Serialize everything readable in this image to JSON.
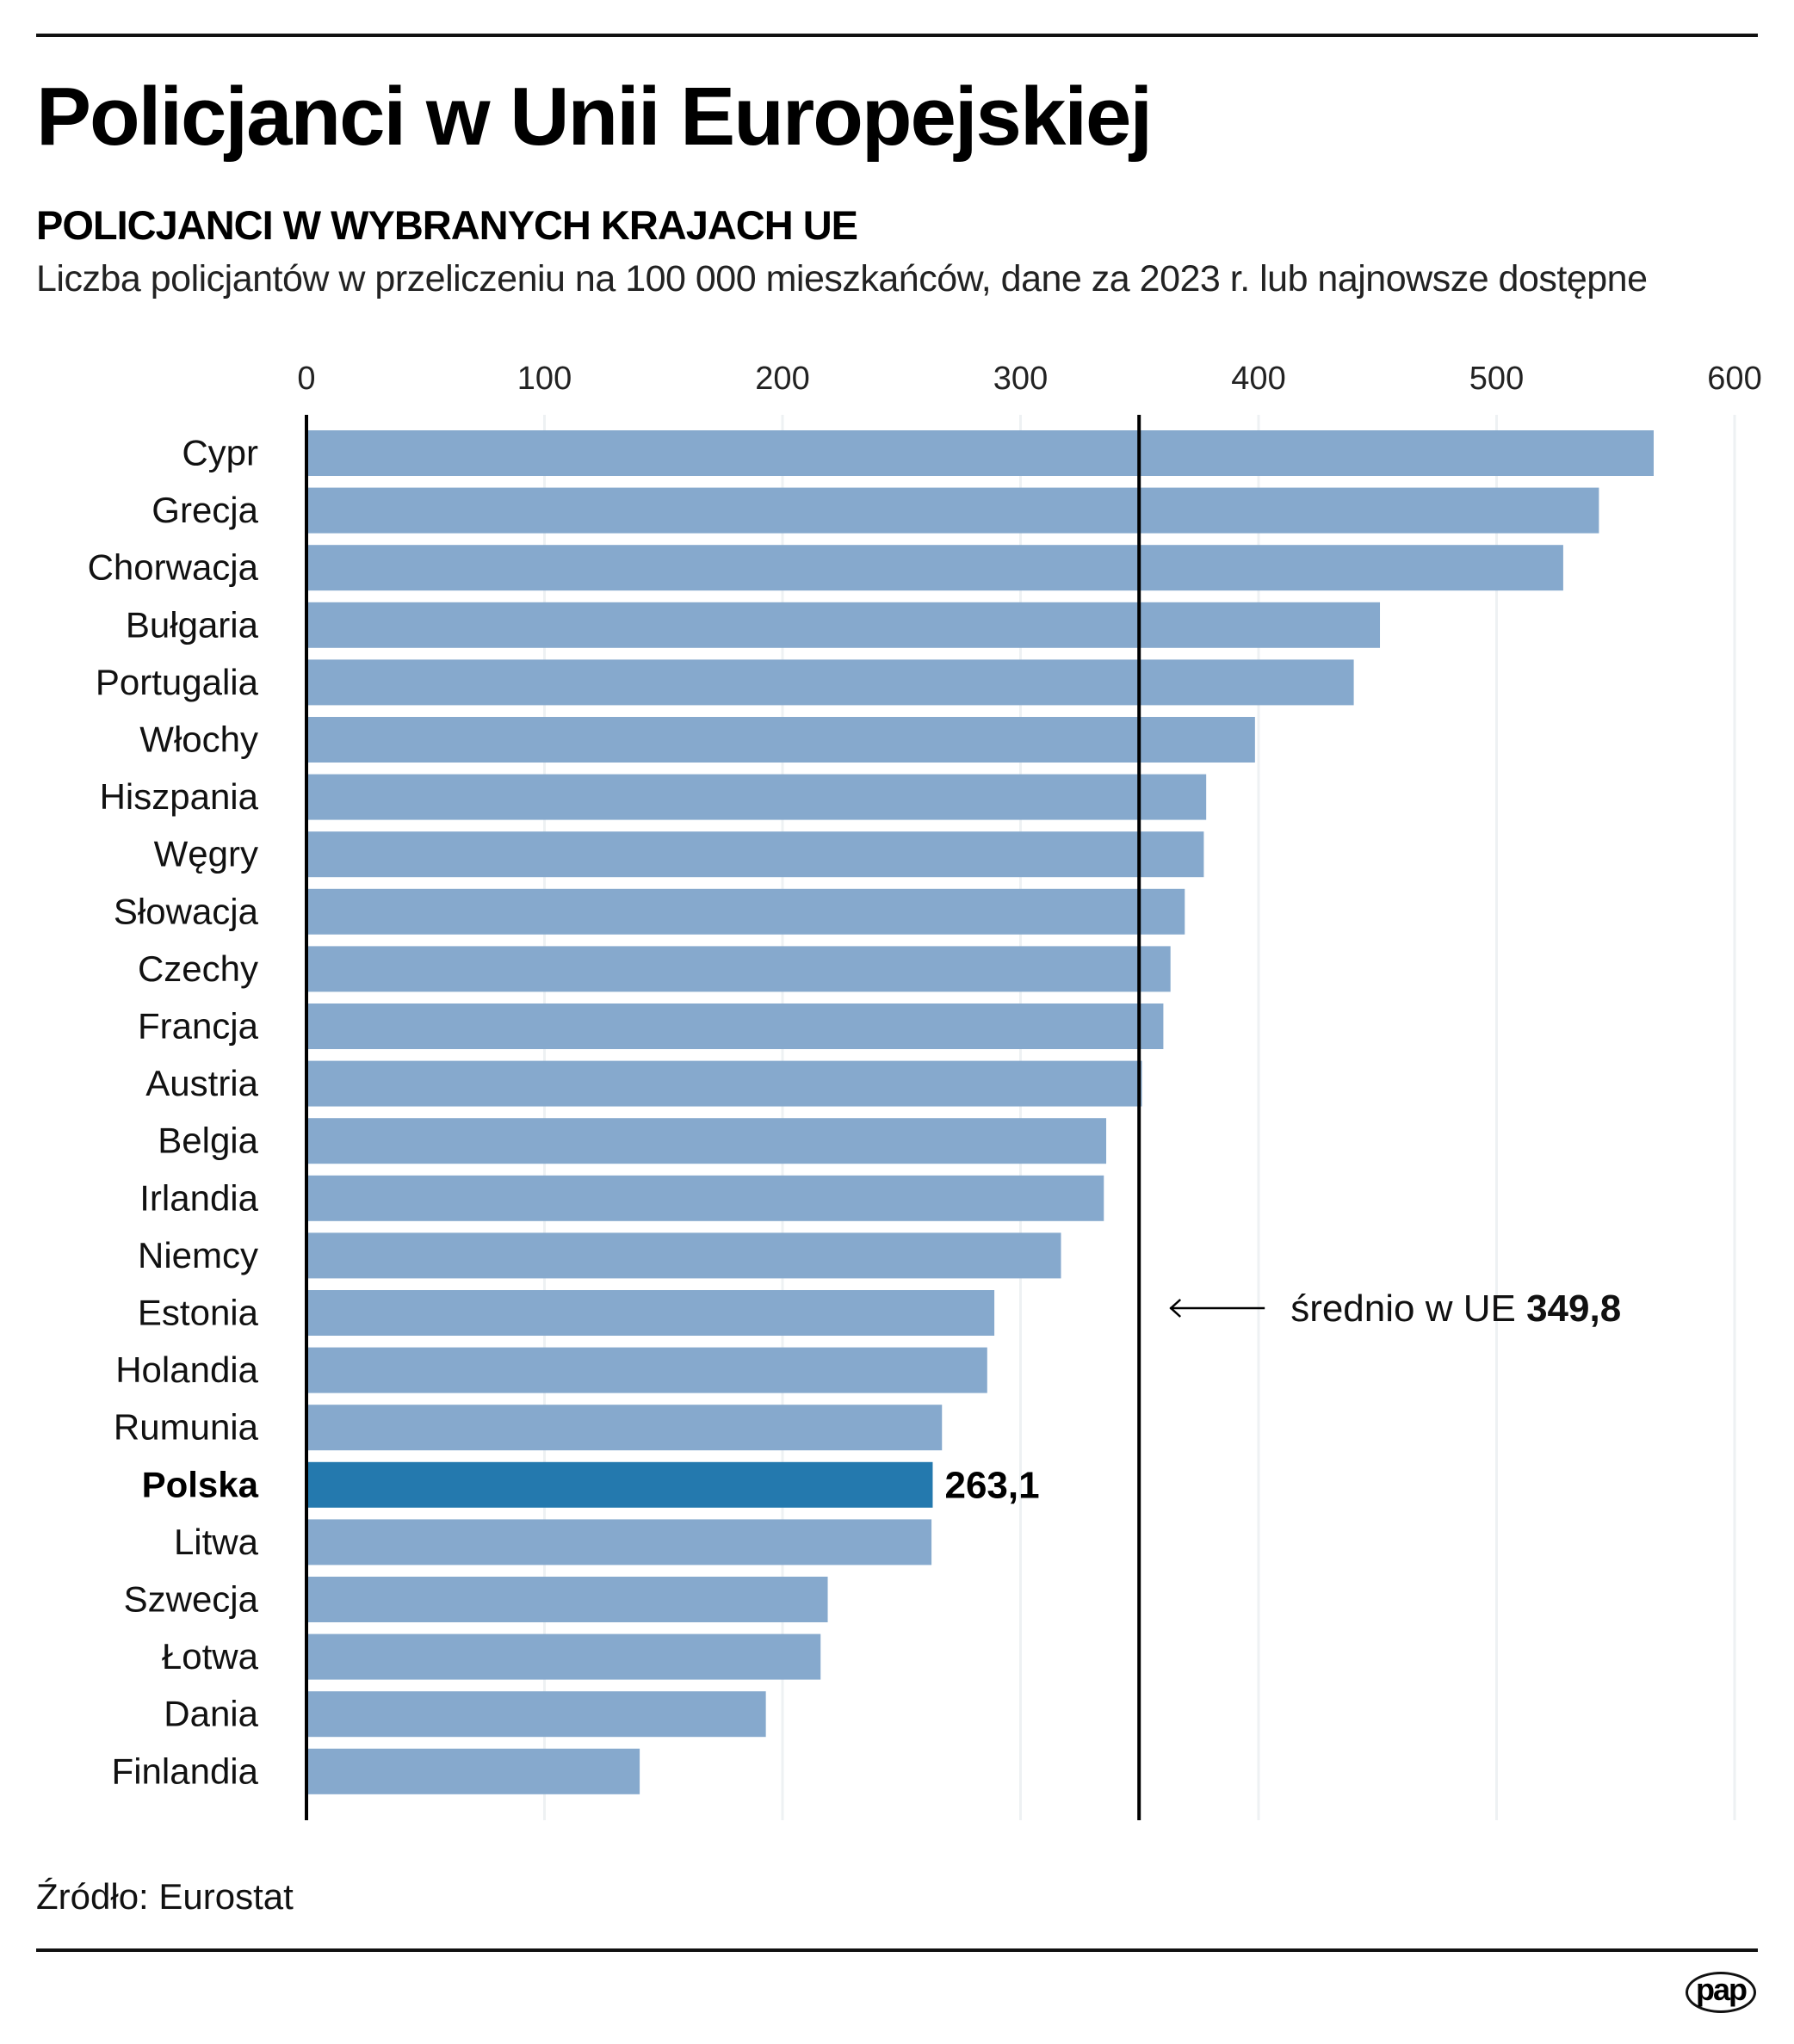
{
  "header": {
    "title": "Policjanci w Unii Europejskiej",
    "subtitle": "POLICJANCI W WYBRANYCH KRAJACH UE",
    "description": "Liczba policjantów w przeliczeniu na 100 000 mieszkańców, dane za 2023 r. lub najnowsze dostępne"
  },
  "footer": {
    "source": "Źródło: Eurostat",
    "logo_text": "pap"
  },
  "colors": {
    "bar": "#86A9CD",
    "highlight_bar": "#2479AE",
    "mean_line": "#000000",
    "grid": "#EEF1F3"
  },
  "chart_data": {
    "type": "bar",
    "orientation": "horizontal",
    "title": "POLICJANCI W WYBRANYCH KRAJACH UE",
    "subtitle": "Liczba policjantów w przeliczeniu na 100 000 mieszkańców, dane za 2023 r. lub najnowsze dostępne",
    "xlabel": "",
    "ylabel": "",
    "xlim": [
      0,
      600
    ],
    "ticks": [
      0,
      100,
      200,
      300,
      400,
      500,
      600
    ],
    "tick_labels": [
      "0",
      "100",
      "200",
      "300",
      "400",
      "500",
      "600"
    ],
    "grid": true,
    "tick_position": "top",
    "categories": [
      "Cypr",
      "Grecja",
      "Chorwacja",
      "Bułgaria",
      "Portugalia",
      "Włochy",
      "Hiszpania",
      "Węgry",
      "Słowacja",
      "Czechy",
      "Francja",
      "Austria",
      "Belgia",
      "Irlandia",
      "Niemcy",
      "Estonia",
      "Holandia",
      "Rumunia",
      "Polska",
      "Litwa",
      "Szwecja",
      "Łotwa",
      "Dania",
      "Finlandia"
    ],
    "values": [
      566,
      543,
      528,
      451,
      440,
      398.5,
      378,
      377,
      369,
      363,
      360,
      351,
      336,
      335,
      317,
      289,
      286,
      267,
      263.1,
      262.6,
      219,
      216,
      193,
      140
    ],
    "highlight": {
      "category": "Polska",
      "value_label": "263,1"
    },
    "reference_line": {
      "value": 349.8,
      "label_prefix": "średnio w UE",
      "label_value": "349,8"
    }
  }
}
